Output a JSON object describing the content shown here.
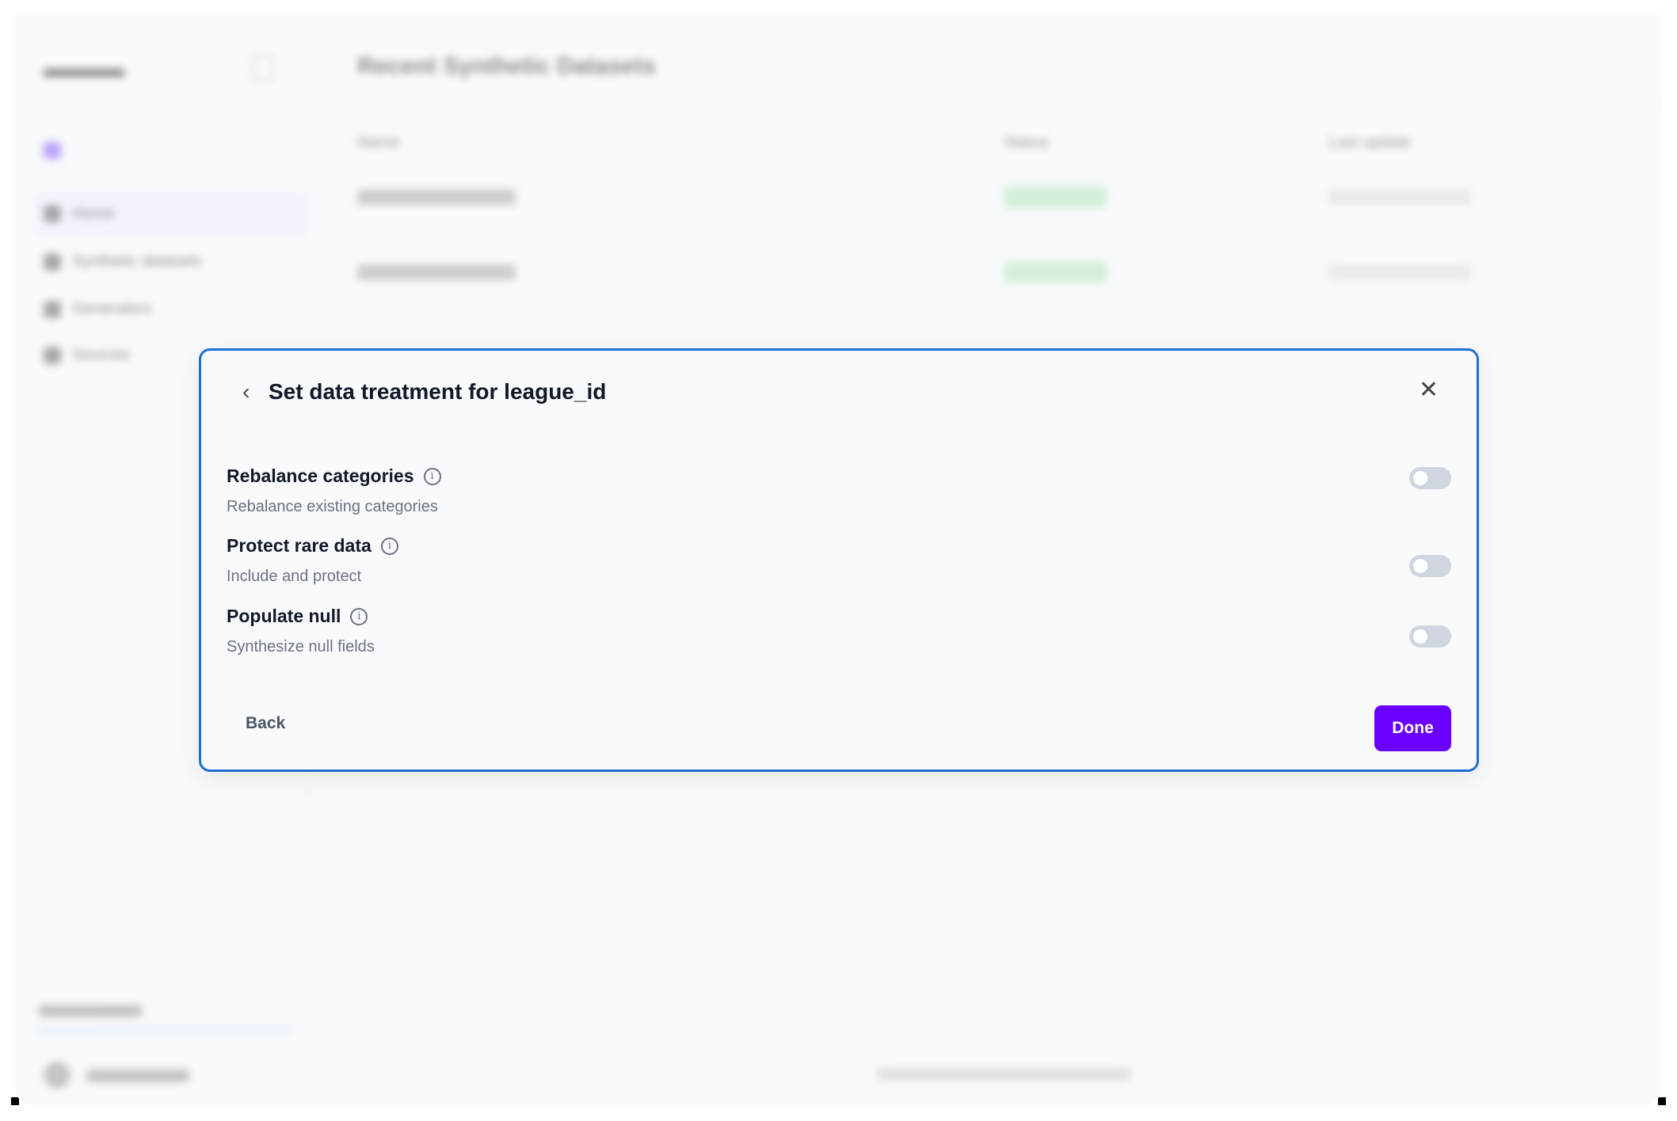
{
  "background": {
    "page_title": "Recent Synthetic Datasets",
    "table_headers": [
      "Name",
      "Status",
      "Last update"
    ],
    "sidebar_items": [
      "Home",
      "Synthetic datasets",
      "Generators",
      "Sources"
    ]
  },
  "modal": {
    "title": "Set data treatment for league_id",
    "options": [
      {
        "label": "Rebalance categories",
        "description": "Rebalance existing categories",
        "enabled": false
      },
      {
        "label": "Protect rare data",
        "description": "Include and protect",
        "enabled": false
      },
      {
        "label": "Populate null",
        "description": "Synthesize null fields",
        "enabled": false
      }
    ],
    "back_label": "Back",
    "done_label": "Done",
    "info_glyph": "i"
  },
  "colors": {
    "accent": "#6a00ff",
    "modal_border": "#1f6fd1",
    "toggle_off": "#cfd6df"
  }
}
